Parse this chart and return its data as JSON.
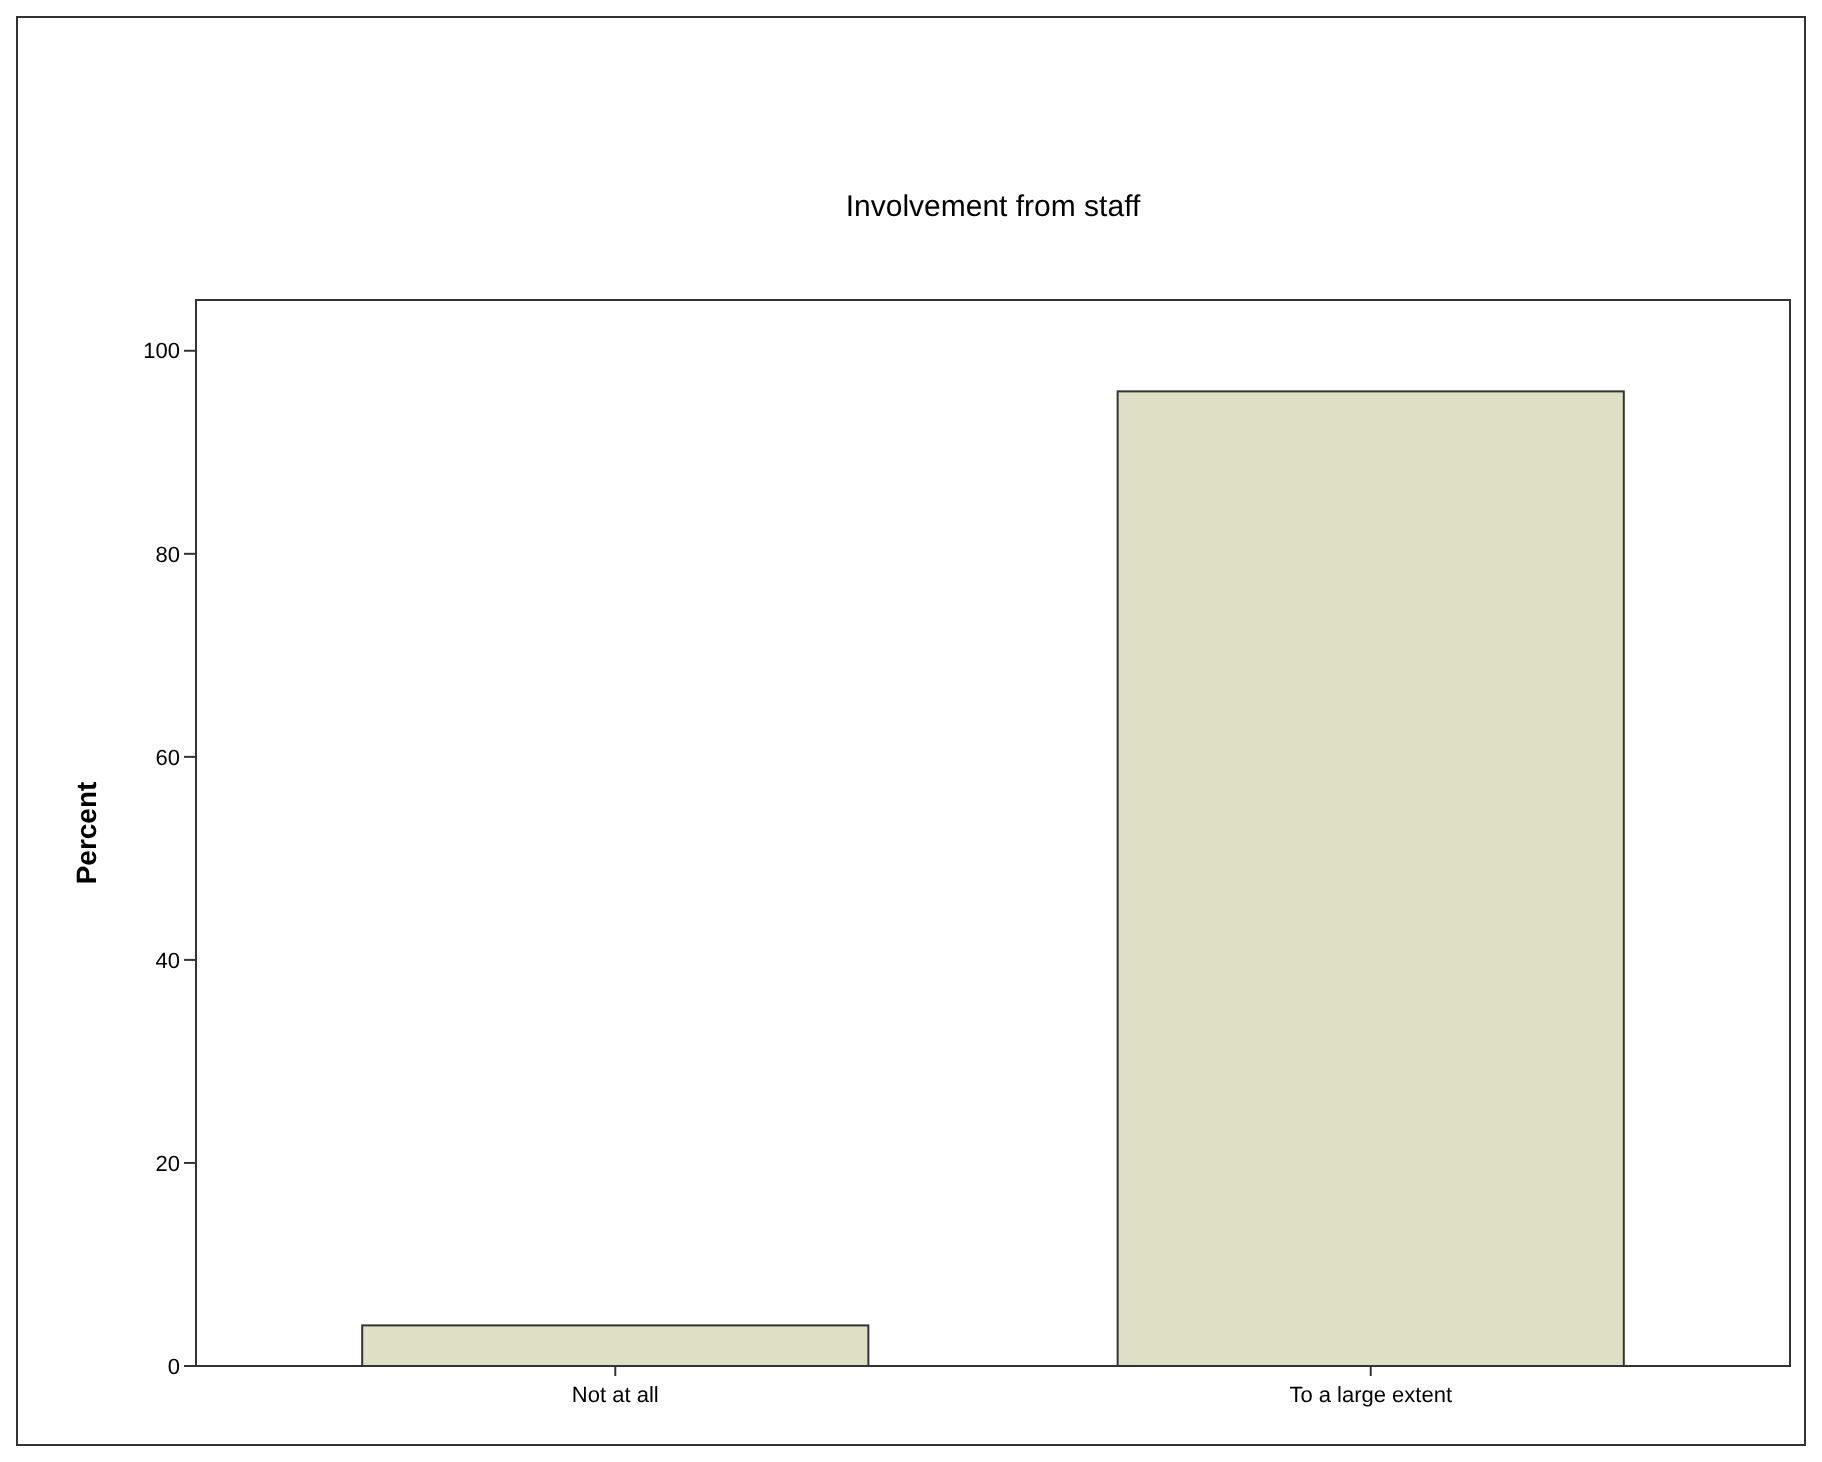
{
  "chart_data": {
    "type": "bar",
    "title": "Involvement from staff",
    "ylabel": "Percent",
    "categories": [
      "Not at all",
      "To a large extent"
    ],
    "values": [
      4,
      96
    ],
    "color": "#dedfc4",
    "ylim": [
      0,
      105
    ],
    "yticks": [
      0,
      20,
      40,
      60,
      80,
      100
    ],
    "grid": false
  }
}
